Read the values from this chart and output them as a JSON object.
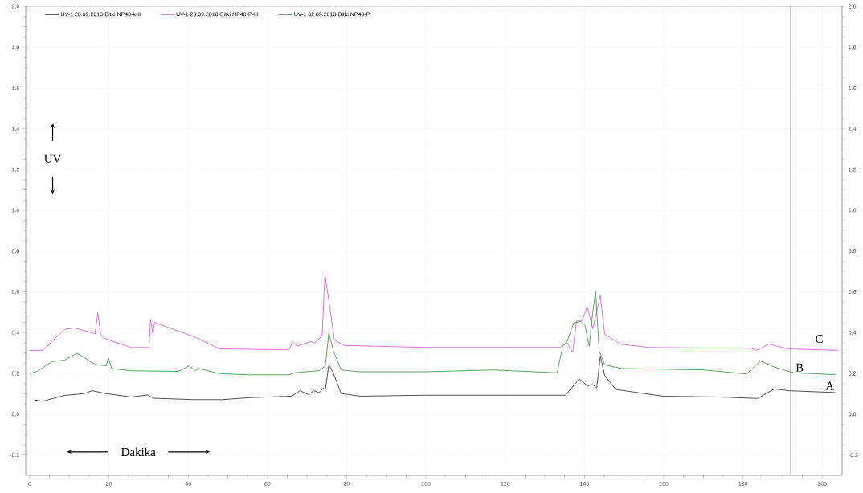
{
  "chart_data": {
    "type": "line",
    "xlabel": "Dakika",
    "ylabel": "UV",
    "xlim": [
      -1,
      205
    ],
    "ylim": [
      -0.3,
      2.0
    ],
    "y2lim": [
      -0.3,
      2.0
    ],
    "xticks": [
      0,
      20,
      40,
      60,
      80,
      100,
      120,
      140,
      160,
      180,
      200
    ],
    "yticks": [
      -0.2,
      {
        "value": 0,
        "label": "0.0"
      },
      0.2,
      0.4,
      0.6,
      0.8,
      {
        "value": 1,
        "label": "1.0"
      },
      1.2,
      1.4,
      1.6,
      1.8,
      {
        "value": 2,
        "label": "2.0"
      }
    ],
    "y2ticks": [
      -0.2,
      {
        "value": 0,
        "label": "0.0"
      },
      0.2,
      0.4,
      0.6,
      0.8,
      {
        "value": 1,
        "label": "1.0"
      },
      1.2,
      1.4,
      1.6,
      1.8,
      {
        "value": 2,
        "label": "2.0"
      }
    ],
    "grid": true,
    "legend": "top left",
    "series": [
      {
        "name": "UV-1 20.09.2010-Bitki NP40-k-II",
        "color": "#404040",
        "x": [
          1.2,
          3.3,
          8.8,
          13.7,
          15.8,
          19.3,
          25.6,
          29.8,
          31.2,
          41.7,
          48.6,
          55.6,
          66.1,
          68.2,
          70.3,
          71.7,
          73.1,
          74.1,
          74.6,
          75.5,
          76.6,
          78.6,
          83.5,
          100.1,
          135.2,
          138.7,
          140.8,
          142.0,
          143.1,
          144.0,
          145.1,
          147.9,
          159.8,
          173.9,
          183.7,
          187.9,
          191.5,
          203.3
        ],
        "values": [
          0.07,
          0.063,
          0.092,
          0.101,
          0.115,
          0.101,
          0.084,
          0.094,
          0.078,
          0.071,
          0.071,
          0.081,
          0.088,
          0.115,
          0.097,
          0.115,
          0.105,
          0.129,
          0.12,
          0.244,
          0.203,
          0.101,
          0.088,
          0.093,
          0.093,
          0.173,
          0.138,
          0.146,
          0.129,
          0.285,
          0.19,
          0.121,
          0.088,
          0.084,
          0.077,
          0.124,
          0.115,
          0.106
        ]
      },
      {
        "name": "UV-1 23.09.2010-Bitki NP40-P-III",
        "color": "#e060e0",
        "x": [
          0,
          3.3,
          8.8,
          11.3,
          16.5,
          17.2,
          17.9,
          18.6,
          25.6,
          30.1,
          30.5,
          31.1,
          31.5,
          41.7,
          47.9,
          65.4,
          66.4,
          67.5,
          71.0,
          72.0,
          73.8,
          74.5,
          75.5,
          76.9,
          79.4,
          100.1,
          133.8,
          135.6,
          137.0,
          138.0,
          139.4,
          140.7,
          142.1,
          144.0,
          145.1,
          149.3,
          156.3,
          182.3,
          183.4,
          186.5,
          191.5,
          204
        ],
        "values": [
          0.313,
          0.313,
          0.416,
          0.423,
          0.394,
          0.498,
          0.391,
          0.373,
          0.327,
          0.327,
          0.466,
          0.391,
          0.45,
          0.378,
          0.32,
          0.316,
          0.353,
          0.334,
          0.356,
          0.35,
          0.385,
          0.685,
          0.555,
          0.364,
          0.337,
          0.327,
          0.327,
          0.35,
          0.303,
          0.459,
          0.459,
          0.528,
          0.419,
          0.582,
          0.391,
          0.343,
          0.327,
          0.323,
          0.313,
          0.343,
          0.32,
          0.313
        ]
      },
      {
        "name": "UV-1 02.09.2010-Bitki NP40-P",
        "color": "#4c9a4c",
        "x": [
          0,
          1.9,
          5.7,
          8.8,
          12.0,
          16.5,
          19.3,
          19.9,
          20.7,
          25.6,
          37.5,
          40.3,
          41.7,
          42.7,
          47.9,
          55.6,
          65.4,
          66.8,
          73.1,
          74.6,
          75.5,
          76.6,
          78.6,
          83.5,
          100.1,
          116.9,
          133.1,
          134.5,
          135.6,
          137.3,
          139.1,
          140.1,
          141.2,
          142.1,
          142.8,
          143.7,
          145.1,
          149.3,
          170.3,
          180.9,
          184.4,
          187.9,
          192.8,
          203.3
        ],
        "values": [
          0.199,
          0.21,
          0.258,
          0.265,
          0.299,
          0.244,
          0.237,
          0.274,
          0.224,
          0.213,
          0.21,
          0.237,
          0.213,
          0.224,
          0.199,
          0.193,
          0.193,
          0.203,
          0.214,
          0.237,
          0.401,
          0.312,
          0.217,
          0.208,
          0.208,
          0.217,
          0.203,
          0.333,
          0.356,
          0.448,
          0.455,
          0.435,
          0.333,
          0.503,
          0.601,
          0.312,
          0.242,
          0.224,
          0.217,
          0.197,
          0.261,
          0.231,
          0.203,
          0.194
        ]
      }
    ],
    "ref_lines": [
      {
        "axis": "x",
        "value": 192,
        "color": "#808080"
      }
    ],
    "annotations": [
      "C",
      "B",
      "A"
    ]
  }
}
